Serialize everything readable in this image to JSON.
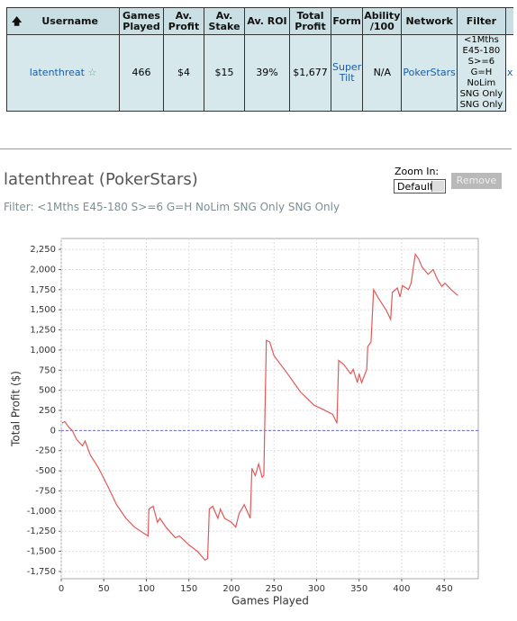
{
  "table": {
    "headers": [
      "Username",
      "Games Played",
      "Av. Profit",
      "Av. Stake",
      "Av. ROI",
      "Total Profit",
      "Form",
      "Ability /100",
      "Network",
      "Filter"
    ],
    "rows": [
      [
        "latenthreat",
        "466",
        "$4",
        "$15",
        "39%",
        "$1,677",
        "Super Tilt",
        "N/A",
        "PokerStars",
        "<1Mths E45-180 S>=6 G=H NoLim SNG Only SNG Only",
        "x"
      ]
    ]
  },
  "profile": {
    "title": "latenthreat (PokerStars)",
    "zoom_label": "Zoom In:",
    "zoom_option": "Default",
    "button": "Remove",
    "filter": "Filter: <1Mths E45-180 S>=6 G=H NoLim SNG Only SNG Only"
  },
  "chart_data": {
    "type": "line",
    "x_label": "Games Played",
    "y_label": "Total Profit ($)",
    "x": [
      1,
      4,
      10,
      13,
      18,
      25,
      28,
      34,
      44,
      55,
      65,
      76,
      86,
      102,
      103,
      108,
      113,
      116,
      123,
      134,
      139,
      150,
      160,
      169,
      172,
      174,
      178,
      184,
      187,
      192,
      200,
      205,
      209,
      215,
      222,
      224,
      228,
      232,
      236,
      238,
      241,
      245,
      250,
      266,
      281,
      297,
      308,
      319,
      324,
      326,
      332,
      340,
      343,
      348,
      350,
      353,
      359,
      360,
      364,
      367,
      373,
      382,
      387,
      389,
      395,
      398,
      401,
      408,
      411,
      416,
      420,
      424,
      431,
      437,
      442,
      447,
      451,
      458,
      466
    ],
    "values": [
      90,
      112,
      30,
      0,
      -110,
      -190,
      -130,
      -300,
      -470,
      -700,
      -920,
      -1090,
      -1200,
      -1310,
      -975,
      -940,
      -1140,
      -1090,
      -1200,
      -1330,
      -1310,
      -1420,
      -1500,
      -1610,
      -1590,
      -975,
      -940,
      -1090,
      -975,
      -1090,
      -1140,
      -1200,
      -1030,
      -920,
      -1090,
      -470,
      -560,
      -415,
      -580,
      -560,
      1120,
      1100,
      930,
      705,
      480,
      315,
      260,
      200,
      90,
      870,
      820,
      705,
      760,
      595,
      705,
      595,
      760,
      1040,
      1100,
      1750,
      1640,
      1490,
      1380,
      1715,
      1770,
      1660,
      1800,
      1750,
      1830,
      2190,
      2130,
      2030,
      1940,
      2000,
      1880,
      1790,
      1830,
      1750,
      1677
    ],
    "color": "#e05a5a",
    "hline": 0,
    "hline_color": "#6a6ad0",
    "grid": true,
    "xlim": [
      0,
      490
    ],
    "xticks": [
      0,
      50,
      100,
      150,
      200,
      250,
      300,
      350,
      400,
      450
    ],
    "ylim": [
      -1840,
      2385
    ],
    "yticks": [
      {
        "value": -1750,
        "label": "-1,750"
      },
      {
        "value": -1500,
        "label": "-1,500"
      },
      {
        "value": -1250,
        "label": "-1,250"
      },
      {
        "value": -1000,
        "label": "-1,000"
      },
      -750,
      -500,
      -250,
      0,
      250,
      500,
      750,
      {
        "value": 1000,
        "label": "1,000"
      },
      {
        "value": 1250,
        "label": "1,250"
      },
      {
        "value": 1500,
        "label": "1,500"
      },
      {
        "value": 1750,
        "label": "1,750"
      },
      {
        "value": 2000,
        "label": "2,000"
      },
      {
        "value": 2250,
        "label": "2,250"
      }
    ]
  }
}
